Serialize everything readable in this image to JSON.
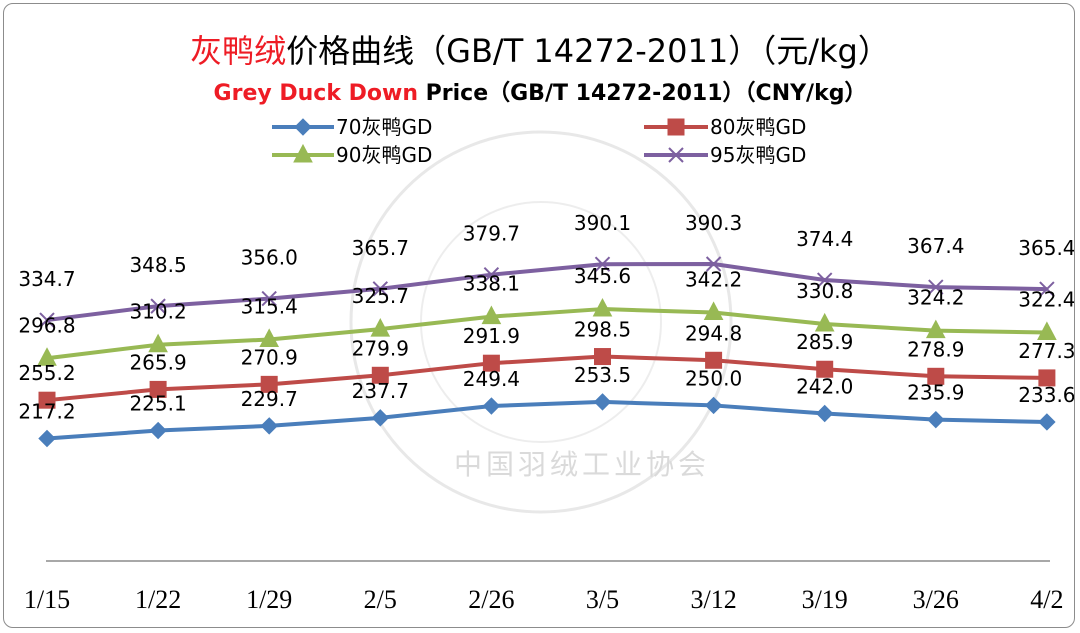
{
  "chart_data": {
    "type": "line",
    "title": {
      "highlight": "灰鸭绒",
      "rest": "价格曲线（GB/T 14272-2011）（元/kg）"
    },
    "subtitle": {
      "highlight": "Grey Duck Down",
      "rest": " Price（GB/T 14272-2011）（CNY/kg）"
    },
    "categories": [
      "1/15",
      "1/22",
      "1/29",
      "2/5",
      "2/26",
      "3/5",
      "3/12",
      "3/19",
      "3/26",
      "4/2"
    ],
    "ylim": [
      150,
      420
    ],
    "grid": false,
    "legend_position": "top",
    "series": [
      {
        "name": "70灰鸭GD",
        "marker": "diamond",
        "color": "#4a7ebb",
        "values": [
          217.2,
          225.1,
          229.7,
          237.7,
          249.4,
          253.5,
          250.0,
          242.0,
          235.9,
          233.6
        ],
        "labels": [
          "217.2",
          "225.1",
          "229.7",
          "237.7",
          "249.4",
          "253.5",
          "250.0",
          "242.0",
          "235.9",
          "233.6"
        ]
      },
      {
        "name": "80灰鸭GD",
        "marker": "square",
        "color": "#be4b48",
        "values": [
          255.2,
          265.9,
          270.9,
          279.9,
          291.9,
          298.5,
          294.8,
          285.9,
          278.9,
          277.3
        ],
        "labels": [
          "255.2",
          "265.9",
          "270.9",
          "279.9",
          "291.9",
          "298.5",
          "294.8",
          "285.9",
          "278.9",
          "277.3"
        ]
      },
      {
        "name": "90灰鸭GD",
        "marker": "triangle",
        "color": "#98b954",
        "values": [
          296.8,
          310.2,
          315.4,
          325.7,
          338.1,
          345.6,
          342.2,
          330.8,
          324.2,
          322.4
        ],
        "labels": [
          "296.8",
          "310.2",
          "315.4",
          "325.7",
          "338.1",
          "345.6",
          "342.2",
          "330.8",
          "324.2",
          "322.4"
        ]
      },
      {
        "name": "95灰鸭GD",
        "marker": "x",
        "color": "#7d60a0",
        "values": [
          334.7,
          348.5,
          356.0,
          365.7,
          379.7,
          390.1,
          390.3,
          374.4,
          367.4,
          365.4
        ],
        "labels": [
          "334.7",
          "348.5",
          "356.0",
          "365.7",
          "379.7",
          "390.1",
          "390.3",
          "374.4",
          "367.4",
          "365.4"
        ]
      }
    ]
  },
  "watermark": {
    "ring_text": "CHINA FEATHER AND DOWN INDUSTRIAL",
    "bottom_text": "中国羽绒工业协会"
  }
}
